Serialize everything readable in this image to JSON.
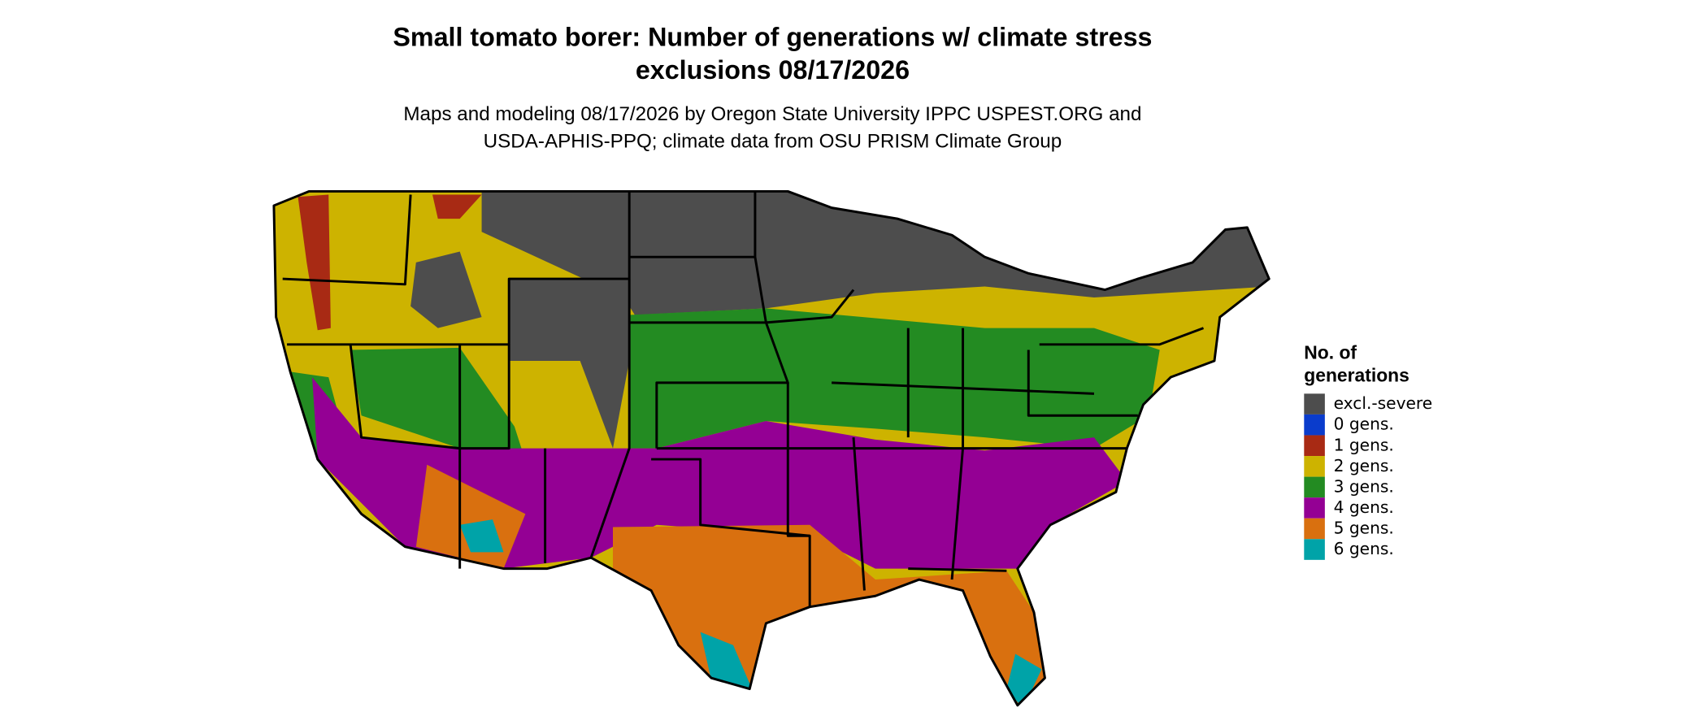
{
  "title_lines": [
    "Small tomato borer: Number of generations w/ climate stress",
    "exclusions 08/17/2026"
  ],
  "subtitle_lines": [
    "Maps and modeling 08/17/2026 by Oregon State University IPPC USPEST.ORG and",
    "USDA-APHIS-PPQ; climate data from OSU PRISM Climate Group"
  ],
  "legend": {
    "title_lines": [
      "No. of",
      "generations"
    ],
    "items": [
      {
        "label": "excl.-severe",
        "color": "#4d4d4d"
      },
      {
        "label": "0 gens.",
        "color": "#0a3ccc"
      },
      {
        "label": "1 gens.",
        "color": "#a82a14"
      },
      {
        "label": "2 gens.",
        "color": "#cdb300"
      },
      {
        "label": "3 gens.",
        "color": "#238b22"
      },
      {
        "label": "4 gens.",
        "color": "#940094"
      },
      {
        "label": "5 gens.",
        "color": "#d9700f"
      },
      {
        "label": "6 gens.",
        "color": "#00a3a8"
      }
    ]
  }
}
